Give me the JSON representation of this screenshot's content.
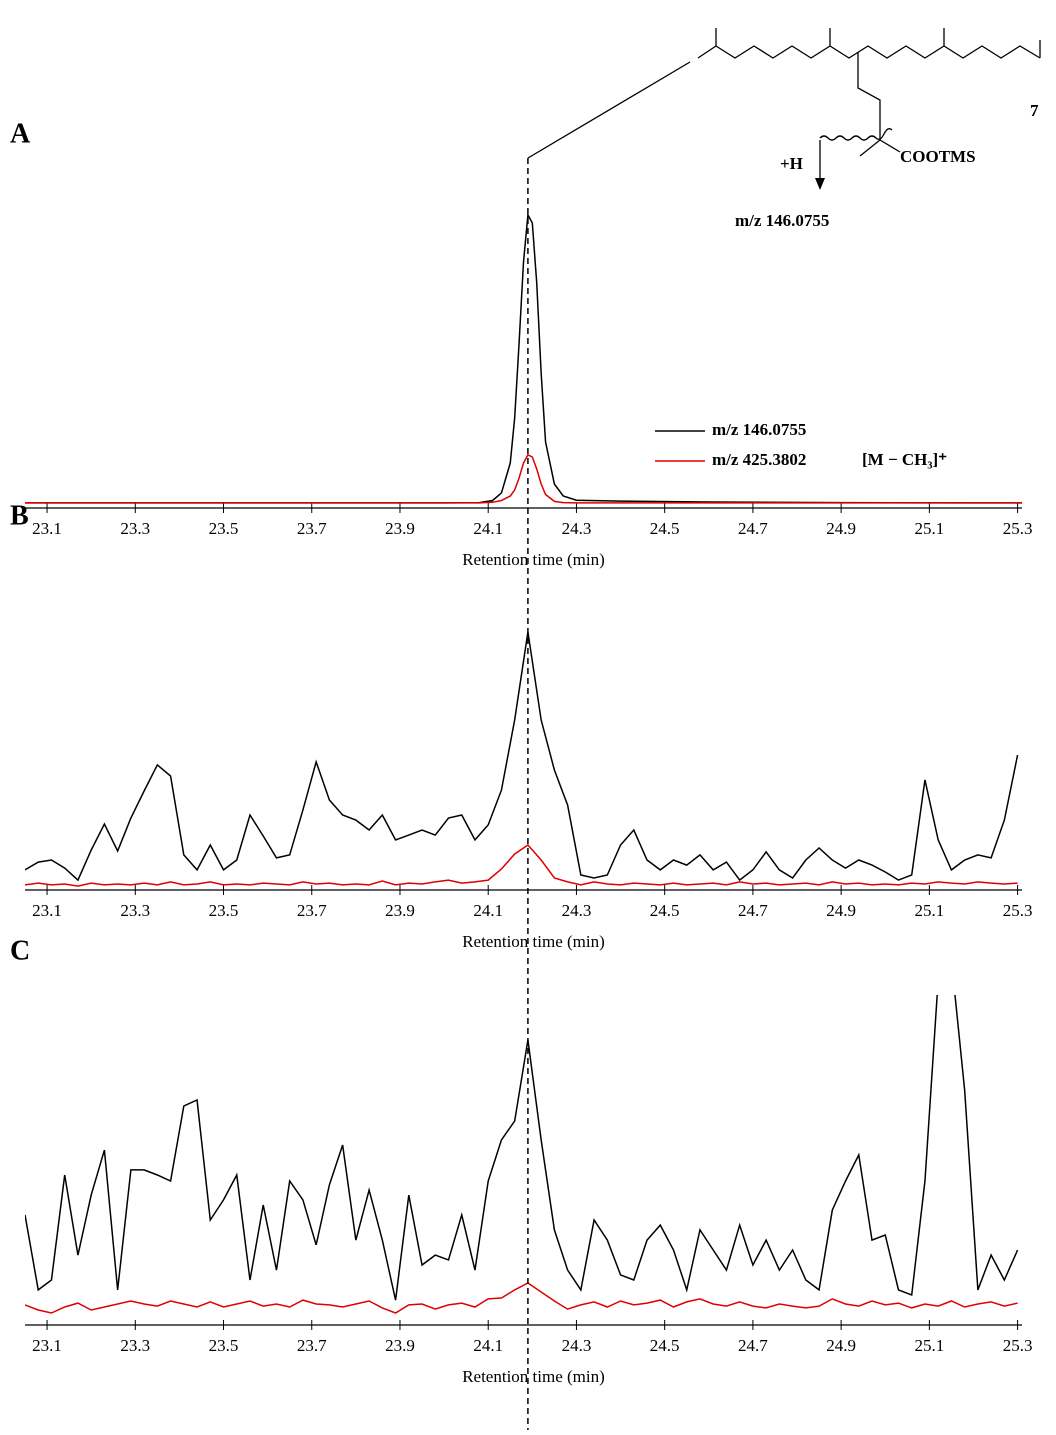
{
  "structure": {
    "compound_number": "7",
    "fragment_label": "+H",
    "group": "COOTMS",
    "fragment_mz": "m/z 146.0755"
  },
  "reference_x": 24.19,
  "chart_data": [
    {
      "type": "line",
      "panel_label": "A",
      "x_label": "Retention time (min)",
      "legend": true,
      "legend_note": "[M − CH₃]⁺",
      "xlim": [
        23.05,
        25.31
      ],
      "xticks": [
        23.1,
        23.3,
        23.5,
        23.7,
        23.9,
        24.1,
        24.3,
        24.5,
        24.7,
        24.9,
        25.1,
        25.3
      ],
      "ylim": [
        0,
        100
      ],
      "x": [
        23.05,
        23.3,
        23.6,
        23.9,
        24.0,
        24.08,
        24.11,
        24.13,
        24.15,
        24.16,
        24.17,
        24.18,
        24.19,
        24.2,
        24.21,
        24.22,
        24.23,
        24.25,
        24.27,
        24.3,
        24.4,
        24.6,
        24.9,
        25.2,
        25.31
      ],
      "series": [
        {
          "name": "m/z 146.0755",
          "color": "#000000",
          "values": [
            1.7,
            1.7,
            1.7,
            1.7,
            1.7,
            1.8,
            2.5,
            5,
            15,
            30,
            55,
            82,
            97.7,
            95,
            75,
            45,
            22,
            8,
            4,
            2.6,
            2.3,
            2,
            1.8,
            1.7,
            1.7
          ]
        },
        {
          "name": "m/z 425.3802",
          "color": "#e00000",
          "values": [
            1.7,
            1.7,
            1.7,
            1.7,
            1.7,
            1.7,
            1.9,
            2.5,
            4,
            6,
            10,
            15,
            17.7,
            17,
            13,
            8,
            4.5,
            2.2,
            1.8,
            1.7,
            1.7,
            1.7,
            1.7,
            1.7,
            1.7
          ]
        }
      ]
    },
    {
      "type": "line",
      "panel_label": "B",
      "x_label": "Retention time (min)",
      "legend": false,
      "xlim": [
        23.05,
        25.31
      ],
      "xticks": [
        23.1,
        23.3,
        23.5,
        23.7,
        23.9,
        24.1,
        24.3,
        24.5,
        24.7,
        24.9,
        25.1,
        25.3
      ],
      "ylim": [
        0,
        100
      ],
      "x": [
        23.05,
        23.08,
        23.11,
        23.14,
        23.17,
        23.2,
        23.23,
        23.26,
        23.29,
        23.32,
        23.35,
        23.38,
        23.41,
        23.44,
        23.47,
        23.5,
        23.53,
        23.56,
        23.59,
        23.62,
        23.65,
        23.68,
        23.71,
        23.74,
        23.77,
        23.8,
        23.83,
        23.86,
        23.89,
        23.92,
        23.95,
        23.98,
        24.01,
        24.04,
        24.07,
        24.1,
        24.13,
        24.16,
        24.19,
        24.22,
        24.25,
        24.28,
        24.31,
        24.34,
        24.37,
        24.4,
        24.43,
        24.46,
        24.49,
        24.52,
        24.55,
        24.58,
        24.61,
        24.64,
        24.67,
        24.7,
        24.73,
        24.76,
        24.79,
        24.82,
        24.85,
        24.88,
        24.91,
        24.94,
        24.97,
        25,
        25.03,
        25.06,
        25.09,
        25.12,
        25.15,
        25.18,
        25.21,
        25.24,
        25.27,
        25.3
      ],
      "series": [
        {
          "name": "m/z 146.0755",
          "color": "#000000",
          "values": [
            6.7,
            9.3,
            10,
            7.3,
            3.3,
            13.3,
            22,
            13,
            24,
            33,
            41.7,
            38,
            11.7,
            6.7,
            15,
            6.7,
            10,
            25,
            18,
            10.7,
            11.7,
            26.7,
            42.7,
            30,
            25,
            23.3,
            20,
            25,
            16.7,
            18.3,
            20,
            18.3,
            24,
            25,
            16.7,
            21.7,
            33.3,
            56.7,
            86,
            56.7,
            40,
            28.3,
            5,
            4,
            5,
            15,
            20,
            10,
            6.7,
            10,
            8.3,
            11.7,
            6.7,
            9.3,
            3.3,
            6.7,
            12.7,
            6.7,
            4,
            10,
            14,
            10,
            7.3,
            10,
            8.3,
            6,
            3.3,
            5,
            36.7,
            16.7,
            6.7,
            10,
            11.7,
            10.7,
            23.3,
            45
          ]
        },
        {
          "name": "m/z 425.3802",
          "color": "#e00000",
          "values": [
            1.7,
            2.3,
            1.7,
            2,
            1.3,
            2.3,
            1.7,
            2,
            1.7,
            2.3,
            1.7,
            2.7,
            1.7,
            2,
            2.7,
            1.7,
            2,
            1.7,
            2.3,
            2,
            1.7,
            2.7,
            2,
            2.3,
            1.7,
            2,
            1.7,
            3,
            1.7,
            2.3,
            2,
            2.7,
            3.3,
            2.3,
            2.7,
            3.3,
            7,
            12,
            15,
            10,
            4,
            2.7,
            1.7,
            2.7,
            2,
            1.7,
            2.3,
            2,
            1.7,
            2.3,
            1.7,
            2,
            2.3,
            1.7,
            2.7,
            2,
            2.3,
            1.7,
            2,
            2.3,
            1.7,
            2.7,
            2,
            2.3,
            1.7,
            2,
            1.7,
            2.3,
            2,
            2.7,
            2.3,
            2,
            2.7,
            2.3,
            2,
            2.3
          ]
        }
      ]
    },
    {
      "type": "line",
      "panel_label": "C",
      "x_label": "Retention time (min)",
      "legend": false,
      "xlim": [
        23.05,
        25.31
      ],
      "xticks": [
        23.1,
        23.3,
        23.5,
        23.7,
        23.9,
        24.1,
        24.3,
        24.5,
        24.7,
        24.9,
        25.1,
        25.3
      ],
      "ylim": [
        0,
        100
      ],
      "x": [
        23.05,
        23.08,
        23.11,
        23.14,
        23.17,
        23.2,
        23.23,
        23.26,
        23.29,
        23.32,
        23.35,
        23.38,
        23.41,
        23.44,
        23.47,
        23.5,
        23.53,
        23.56,
        23.59,
        23.62,
        23.65,
        23.68,
        23.71,
        23.74,
        23.77,
        23.8,
        23.83,
        23.86,
        23.89,
        23.92,
        23.95,
        23.98,
        24.01,
        24.04,
        24.07,
        24.1,
        24.13,
        24.16,
        24.19,
        24.22,
        24.25,
        24.28,
        24.31,
        24.34,
        24.37,
        24.4,
        24.43,
        24.46,
        24.49,
        24.52,
        24.55,
        24.58,
        24.61,
        24.64,
        24.67,
        24.7,
        24.73,
        24.76,
        24.79,
        24.82,
        24.85,
        24.88,
        24.91,
        24.94,
        24.97,
        25,
        25.03,
        25.06,
        25.09,
        25.12,
        25.15,
        25.18,
        25.21,
        25.24,
        25.27,
        25.3
      ],
      "series": [
        {
          "name": "m/z 146.0755",
          "color": "#000000",
          "values": [
            36.7,
            11.7,
            15,
            50,
            23.3,
            43.3,
            58.3,
            11.7,
            51.7,
            51.7,
            50,
            48,
            73,
            75,
            35,
            41.7,
            50,
            15,
            40,
            18.3,
            48,
            41.7,
            26.7,
            46.7,
            60,
            28.3,
            45,
            28.3,
            8.3,
            43.3,
            20,
            23.3,
            21.7,
            36.7,
            18.3,
            48,
            61.7,
            68,
            95,
            61.7,
            31.7,
            18.3,
            11.7,
            35,
            28.3,
            16.7,
            15,
            28.3,
            33.3,
            25,
            11.7,
            31.7,
            25,
            18.3,
            33.3,
            20,
            28.3,
            18.3,
            25,
            15,
            11.7,
            38.3,
            48,
            56.7,
            28.3,
            30,
            11.7,
            10,
            48,
            115,
            121.7,
            78.3,
            11.7,
            23.3,
            15,
            25
          ]
        },
        {
          "name": "m/z 425.3802",
          "color": "#e00000",
          "values": [
            6.7,
            5,
            4,
            6,
            7.3,
            5,
            6,
            7,
            8,
            7,
            6.3,
            8,
            7,
            6,
            7.7,
            6,
            7,
            8,
            6.3,
            7,
            6,
            8.3,
            7,
            6.7,
            6,
            7,
            8,
            5.7,
            4,
            6.7,
            7,
            5.3,
            6.7,
            7.3,
            6,
            8.7,
            9,
            11.7,
            14,
            11,
            8,
            5.3,
            6.7,
            7.7,
            6,
            8,
            6.7,
            7.3,
            8.3,
            6,
            7.7,
            8.7,
            7,
            6.3,
            7.7,
            6.3,
            5.7,
            7,
            6.3,
            5.7,
            6.3,
            8.7,
            7,
            6.3,
            8,
            6.7,
            7.3,
            5.7,
            7,
            6.3,
            8,
            6,
            7,
            7.7,
            6.3,
            7.3
          ]
        }
      ]
    }
  ]
}
